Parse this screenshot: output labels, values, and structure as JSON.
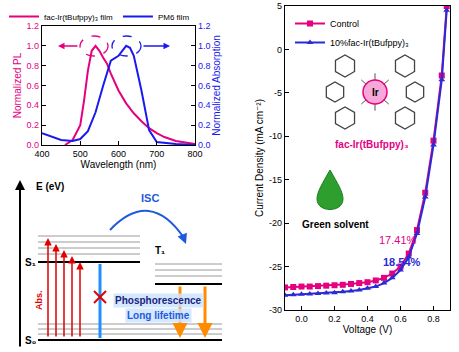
{
  "chart_data": [
    {
      "type": "line",
      "x_label": "Wavelength (nm)",
      "y_label": "Normalized PL",
      "y2_label": "Normalized Absorption",
      "xlim": [
        400,
        800
      ],
      "xticks": [
        400,
        500,
        600,
        700,
        800
      ],
      "ylim": [
        0,
        1.2
      ],
      "yticks": [
        {
          "value": 0,
          "label": "0.0"
        },
        0.2,
        0.4,
        0.6,
        0.8,
        {
          "value": 1,
          "label": "1.0"
        },
        1.2
      ],
      "y2lim": [
        0,
        1.2
      ],
      "y2ticks": [
        {
          "value": 0,
          "label": "0.0"
        },
        0.2,
        0.4,
        0.6,
        0.8,
        {
          "value": 1,
          "label": "1.0"
        },
        1.2
      ],
      "grid": false,
      "legend": "top left",
      "series": [
        {
          "name": "fac-Ir(tBufppy)₃ film",
          "color": "#e4007f",
          "line_style": "solid",
          "x": [
            460,
            480,
            500,
            510,
            520,
            530,
            540,
            550,
            560,
            570,
            580,
            600,
            620,
            640,
            660,
            680,
            700,
            720,
            750,
            800
          ],
          "values": [
            0,
            0.05,
            0.2,
            0.45,
            0.75,
            0.95,
            1.0,
            0.95,
            0.88,
            0.82,
            0.72,
            0.55,
            0.42,
            0.32,
            0.24,
            0.17,
            0.12,
            0.08,
            0.04,
            0.01
          ]
        },
        {
          "name": "PM6 film",
          "color": "#1a1aee",
          "line_style": "solid",
          "axis": "y2",
          "x": [
            400,
            450,
            480,
            500,
            520,
            540,
            560,
            580,
            600,
            610,
            620,
            630,
            640,
            660,
            680,
            700,
            750,
            800
          ],
          "values": [
            0.12,
            0.05,
            0.04,
            0.06,
            0.14,
            0.33,
            0.6,
            0.85,
            0.9,
            0.95,
            1.0,
            0.98,
            0.9,
            0.55,
            0.15,
            0.03,
            0.01,
            0
          ]
        }
      ]
    },
    {
      "type": "line",
      "x_label": "Voltage (V)",
      "y_label": "Current Density (mA cm⁻²)",
      "xlim": [
        -0.1,
        0.9
      ],
      "xticks": [
        {
          "value": 0,
          "label": "0.0"
        },
        0.2,
        0.4,
        0.6,
        0.8
      ],
      "ylim": [
        -30,
        5
      ],
      "yticks": [
        -30,
        -25,
        -20,
        -15,
        -10,
        -5,
        0,
        5
      ],
      "grid": false,
      "legend": "top left",
      "x": [
        -0.1,
        -0.05,
        0,
        0.05,
        0.1,
        0.15,
        0.2,
        0.25,
        0.3,
        0.35,
        0.4,
        0.45,
        0.5,
        0.55,
        0.6,
        0.65,
        0.7,
        0.75,
        0.8,
        0.85,
        0.88
      ],
      "series": [
        {
          "name": "Control",
          "color": "#e4007f",
          "marker": "square",
          "line_style": "solid",
          "values": [
            -27.4,
            -27.35,
            -27.3,
            -27.3,
            -27.25,
            -27.2,
            -27.15,
            -27.1,
            -27.0,
            -26.9,
            -26.8,
            -26.6,
            -26.3,
            -25.8,
            -25.0,
            -23.5,
            -20.8,
            -16.5,
            -10.5,
            -3.0,
            5
          ]
        },
        {
          "name": "10%fac-Ir(tBufppy)₃",
          "color": "#2b2bd6",
          "marker": "triangle-up",
          "line_style": "solid",
          "values": [
            -28.3,
            -28.25,
            -28.2,
            -28.15,
            -28.1,
            -28.05,
            -28.0,
            -27.9,
            -27.8,
            -27.7,
            -27.5,
            -27.3,
            -26.9,
            -26.3,
            -25.4,
            -23.9,
            -21.2,
            -17.0,
            -11.0,
            -3.5,
            4.5
          ]
        }
      ],
      "annotations": [
        "fac-Ir(tBufppy)₃",
        "Ir",
        "Green solvent",
        "17.41%",
        "18.54%"
      ]
    }
  ],
  "diagram": {
    "axis_label": "E (eV)",
    "levels": {
      "S1": "S₁",
      "T1": "T₁",
      "S0": "S₀"
    },
    "labels": {
      "absorption": "Abs.",
      "isc": "ISC",
      "phosphorescence": "Phosphorescence",
      "lifetime": "Long lifetime"
    }
  }
}
